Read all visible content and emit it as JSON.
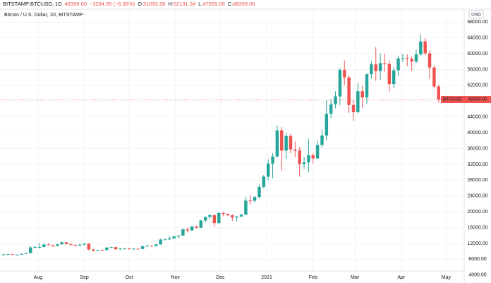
{
  "chart_data": {
    "type": "candlestick",
    "header": {
      "symbol": "BITSTAMP:BTCUSD, 1D",
      "price": "48399.00",
      "change": "−3284.95 (−6.36%)",
      "ohlc": [
        {
          "label": "O:",
          "value": "51693.98"
        },
        {
          "label": "H:",
          "value": "52131.34"
        },
        {
          "label": "L:",
          "value": "47555.00"
        },
        {
          "label": "C:",
          "value": "48399.00"
        }
      ]
    },
    "title": "Bitcoin / U.S. Dollar, 1D, BITSTAMP",
    "currency_label": "USD",
    "price_tag": {
      "name": "BTCUSD",
      "label": "48399.00"
    },
    "up_color": "#26a69a",
    "down_color": "#ef5350",
    "grid": true,
    "open": [
      9200,
      9250,
      9300,
      9150,
      9170,
      9380,
      9550,
      11000,
      11100,
      11100,
      11750,
      11600,
      11400,
      11780,
      12300,
      11850,
      11650,
      11450,
      11700,
      11950,
      10500,
      10250,
      10350,
      10320,
      10950,
      11080,
      10530,
      10700,
      10700,
      10600,
      10670,
      10600,
      11300,
      11430,
      11320,
      11750,
      12980,
      13030,
      13280,
      13800,
      14000,
      15580,
      15300,
      16300,
      15970,
      17800,
      18700,
      19150,
      17150,
      19700,
      19450,
      19150,
      18550,
      18800,
      19270,
      22850,
      22800,
      23750,
      26300,
      28900,
      32200,
      34000,
      40600,
      35500,
      39200,
      35800,
      35500,
      32100,
      32500,
      34300,
      33500,
      36900,
      39300,
      44800,
      47200,
      49200,
      55900,
      54000,
      47000,
      45200,
      50500,
      48900,
      54800,
      57300,
      55600,
      57600,
      57400,
      52300,
      55800,
      58800,
      58900,
      58700,
      58000,
      59800,
      63100,
      60100,
      56500,
      51693.98
    ],
    "high": [
      9330,
      9350,
      9330,
      9220,
      9420,
      9650,
      11300,
      11400,
      12100,
      11900,
      12050,
      11700,
      11950,
      12450,
      12350,
      11900,
      11700,
      11800,
      12050,
      12100,
      10600,
      10400,
      10600,
      11100,
      11150,
      11100,
      10800,
      10950,
      10900,
      10800,
      10750,
      11400,
      11650,
      11550,
      11800,
      13200,
      13250,
      13850,
      13950,
      14100,
      15800,
      15950,
      16400,
      16500,
      18000,
      18800,
      19400,
      19450,
      19900,
      19900,
      19600,
      19300,
      19000,
      19550,
      23800,
      24100,
      24000,
      26900,
      29300,
      33300,
      34800,
      41900,
      41500,
      40000,
      39700,
      37800,
      36400,
      33900,
      38500,
      34800,
      38000,
      40800,
      48200,
      48500,
      50500,
      56400,
      58300,
      54400,
      48300,
      52500,
      51800,
      55000,
      58100,
      61700,
      60000,
      59900,
      58300,
      56600,
      59400,
      60000,
      59800,
      59200,
      61000,
      64900,
      63900,
      60900,
      57000,
      52131.34
    ],
    "low": [
      9130,
      9170,
      9100,
      9050,
      9120,
      9300,
      9500,
      10800,
      10700,
      11050,
      11500,
      11150,
      11300,
      11700,
      11700,
      11500,
      11250,
      11350,
      11600,
      10200,
      9900,
      10050,
      10200,
      10250,
      10800,
      10400,
      10350,
      10600,
      10500,
      10450,
      10500,
      10550,
      11200,
      11250,
      11250,
      11700,
      12800,
      12900,
      13200,
      13300,
      13900,
      14800,
      15200,
      15750,
      15900,
      17300,
      18200,
      16400,
      16900,
      18900,
      18900,
      17700,
      17600,
      18700,
      19200,
      21900,
      22400,
      23400,
      25900,
      28000,
      28500,
      33800,
      30400,
      33400,
      34800,
      33800,
      28900,
      30800,
      30000,
      32200,
      33400,
      36200,
      38000,
      43700,
      46200,
      47000,
      52000,
      45000,
      43000,
      44900,
      46300,
      47300,
      53700,
      53100,
      53400,
      55400,
      50400,
      51200,
      54300,
      57900,
      56800,
      55600,
      57600,
      59400,
      59600,
      53600,
      51200,
      47555
    ],
    "close": [
      9250,
      9300,
      9150,
      9170,
      9380,
      9550,
      11000,
      11100,
      11100,
      11750,
      11600,
      11400,
      11780,
      12300,
      11850,
      11650,
      11450,
      11700,
      11950,
      10500,
      10250,
      10350,
      10320,
      10950,
      11080,
      10530,
      10700,
      10700,
      10600,
      10670,
      10600,
      11300,
      11430,
      11320,
      11750,
      12980,
      13030,
      13280,
      13800,
      14000,
      15580,
      15300,
      16300,
      15970,
      17800,
      18700,
      19150,
      17150,
      19700,
      19450,
      19150,
      18550,
      18800,
      19270,
      22850,
      22800,
      23750,
      26300,
      28900,
      32200,
      34000,
      40600,
      35500,
      39200,
      35800,
      35500,
      32100,
      32500,
      34300,
      33500,
      36900,
      39300,
      44800,
      47200,
      49200,
      55900,
      54000,
      47000,
      45200,
      50500,
      48900,
      54800,
      57300,
      55600,
      57600,
      57400,
      52300,
      55800,
      58800,
      58900,
      58700,
      58000,
      59800,
      63100,
      60100,
      56500,
      51683.95,
      48399
    ],
    "xlim": [
      -0.8,
      102.7
    ],
    "xticks": [
      {
        "value": 7.67,
        "label": "Aug"
      },
      {
        "value": 18,
        "label": "Sep"
      },
      {
        "value": 28,
        "label": "Oct"
      },
      {
        "value": 38.33,
        "label": "Nov"
      },
      {
        "value": 48.33,
        "label": "Dec"
      },
      {
        "value": 58.67,
        "label": "2021"
      },
      {
        "value": 69,
        "label": "Feb"
      },
      {
        "value": 78.33,
        "label": "Mar"
      },
      {
        "value": 88.67,
        "label": "Apr"
      },
      {
        "value": 98.67,
        "label": "May"
      }
    ],
    "ylim": [
      2000,
      70000
    ],
    "yticks": [
      {
        "value": 4000,
        "label": "4000.00"
      },
      {
        "value": 8000,
        "label": "8000.00"
      },
      {
        "value": 12000,
        "label": "12000.00"
      },
      {
        "value": 16000,
        "label": "16000.00"
      },
      {
        "value": 20000,
        "label": "20000.00"
      },
      {
        "value": 24000,
        "label": "24000.00"
      },
      {
        "value": 28000,
        "label": "28000.00"
      },
      {
        "value": 32000,
        "label": "32000.00"
      },
      {
        "value": 36000,
        "label": "36000.00"
      },
      {
        "value": 40000,
        "label": "40000.00"
      },
      {
        "value": 44000,
        "label": "44000.00"
      },
      {
        "value": 48000,
        "label": "48000.00"
      },
      {
        "value": 52000,
        "label": "52000.00"
      },
      {
        "value": 56000,
        "label": "56000.00"
      },
      {
        "value": 60000,
        "label": "60000.00"
      },
      {
        "value": 64000,
        "label": "64000.00"
      },
      {
        "value": 68000,
        "label": "68000.00"
      }
    ]
  }
}
